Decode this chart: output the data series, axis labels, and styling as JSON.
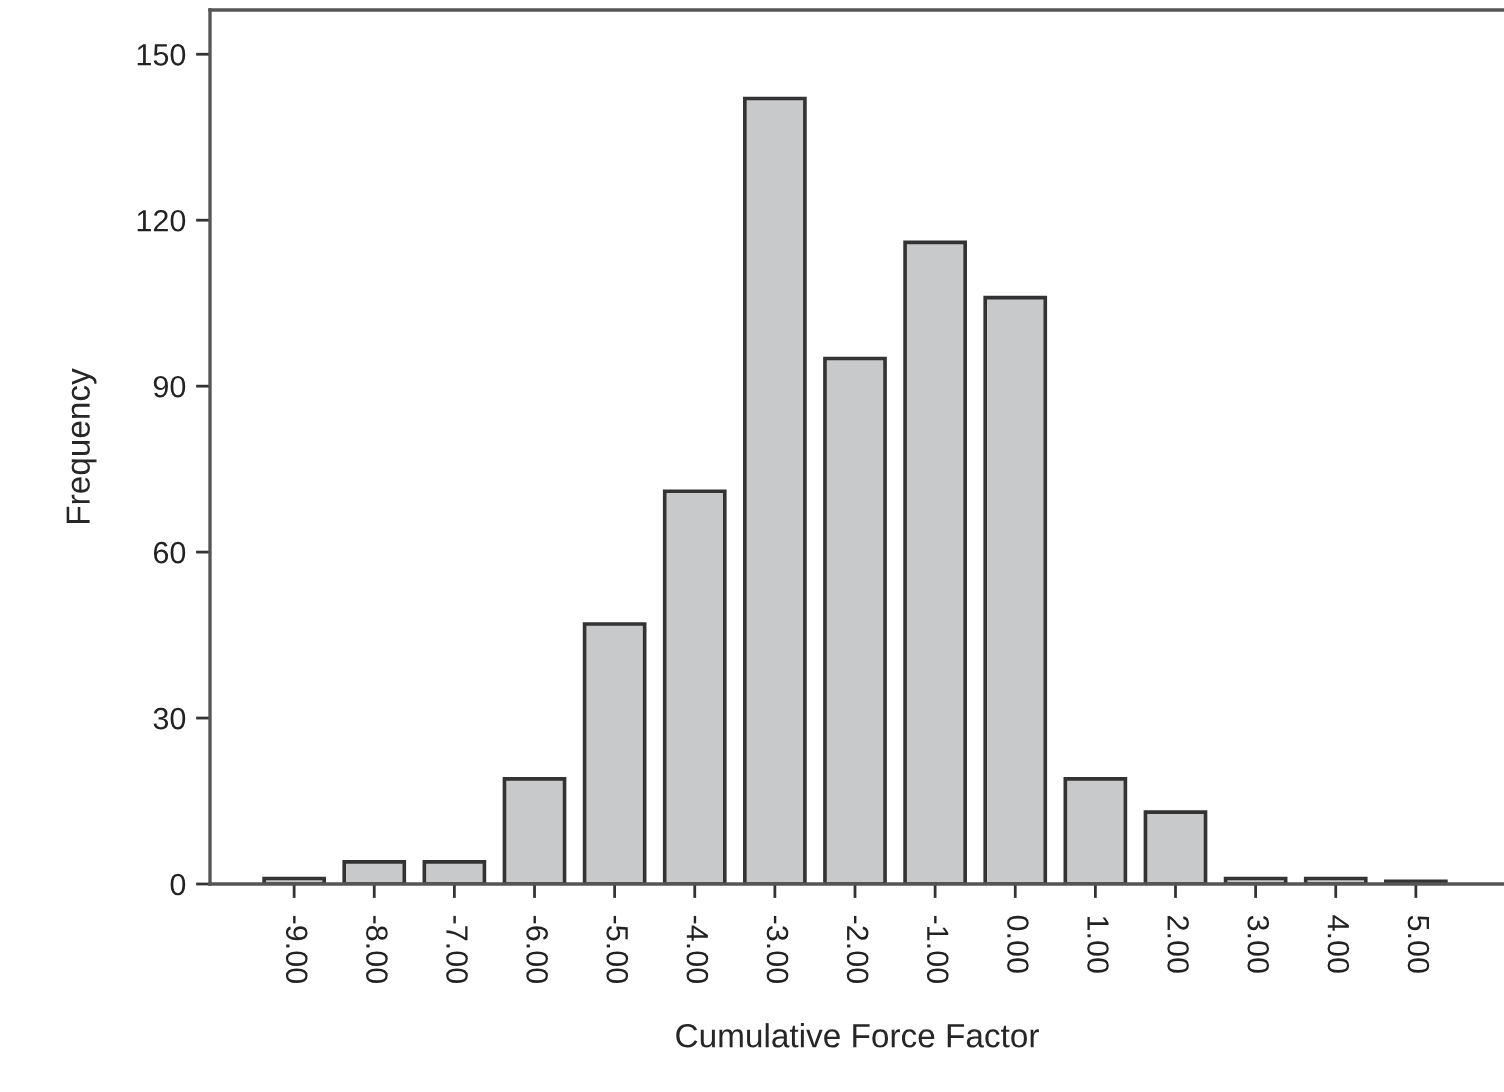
{
  "chart_data": {
    "type": "bar",
    "xlabel": "Cumulative Force Factor",
    "ylabel": "Frequency",
    "categories": [
      "-9.00",
      "-8.00",
      "-7.00",
      "-6.00",
      "-5.00",
      "-4.00",
      "-3.00",
      "-2.00",
      "-1.00",
      "0.00",
      "1.00",
      "2.00",
      "3.00",
      "4.00",
      "5.00"
    ],
    "values": [
      1,
      4,
      4,
      19,
      47,
      71,
      142,
      95,
      116,
      106,
      19,
      13,
      1,
      1,
      0.5
    ],
    "color": "#c8c9cb",
    "ylim": [
      0,
      158
    ],
    "yticks": [
      0,
      30,
      60,
      90,
      120,
      150
    ],
    "grid": false
  }
}
